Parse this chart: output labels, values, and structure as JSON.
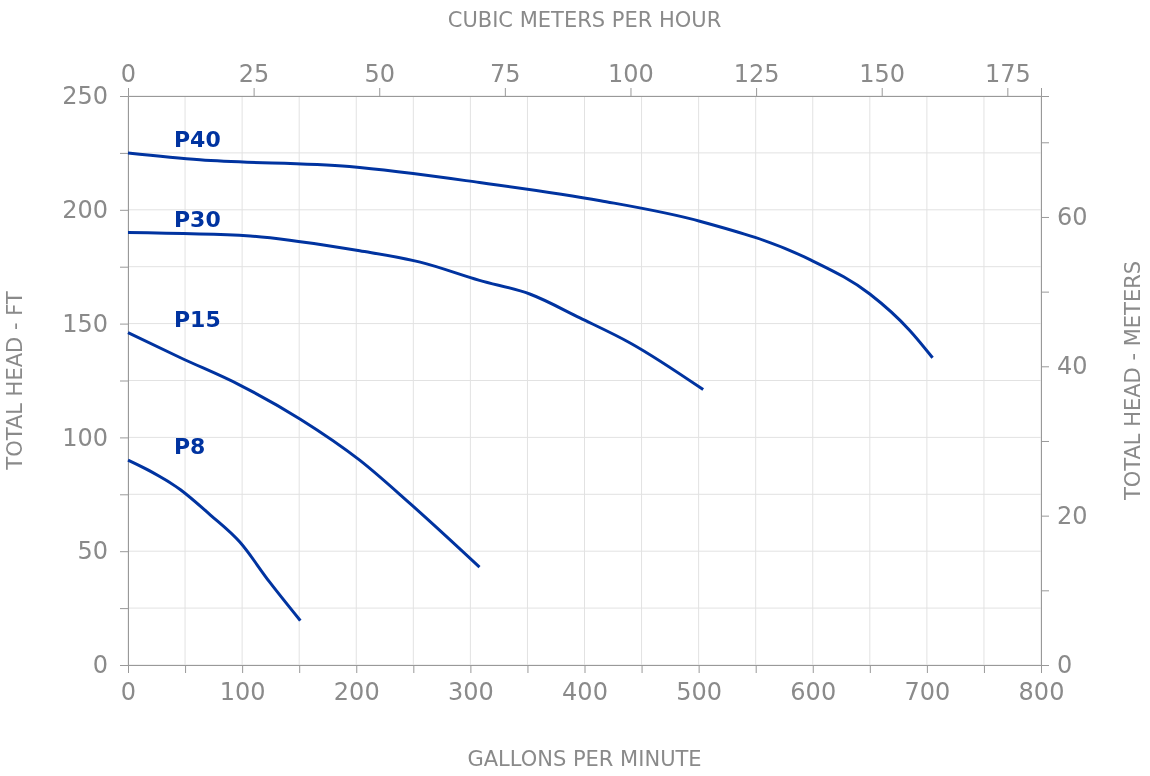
{
  "chart_data": {
    "type": "line",
    "xlabel": "GALLONS PER MINUTE",
    "ylabel": "TOTAL HEAD - FT",
    "y2label": "TOTAL HEAD - METERS",
    "x2label": "CUBIC METERS PER HOUR",
    "xlim": [
      0,
      800
    ],
    "xticks": [
      0,
      {
        "value": 50,
        "label": null
      },
      100,
      {
        "value": 150,
        "label": null
      },
      200,
      {
        "value": 250,
        "label": null
      },
      300,
      {
        "value": 350,
        "label": null
      },
      400,
      {
        "value": 450,
        "label": null
      },
      500,
      {
        "value": 550,
        "label": null
      },
      600,
      {
        "value": 650,
        "label": null
      },
      700,
      {
        "value": 750,
        "label": null
      },
      800
    ],
    "ylim": [
      0,
      250
    ],
    "yticks": [
      0,
      {
        "value": 25,
        "label": null
      },
      50,
      {
        "value": 75,
        "label": null
      },
      100,
      {
        "value": 125,
        "label": null
      },
      150,
      {
        "value": 175,
        "label": null
      },
      200,
      {
        "value": 225,
        "label": null
      },
      250
    ],
    "x2lim": [
      0,
      181.7
    ],
    "x2ticks": [
      0,
      25,
      50,
      75,
      100,
      125,
      150,
      175
    ],
    "y2lim": [
      0,
      76.2
    ],
    "y2ticks": [
      0,
      {
        "value": 10,
        "label": null
      },
      20,
      {
        "value": 30,
        "label": null
      },
      40,
      {
        "value": 50,
        "label": null
      },
      60,
      {
        "value": 70,
        "label": null
      }
    ],
    "grid": true,
    "marker": "none",
    "line_style": "solid",
    "series": [
      {
        "name": "P40",
        "color": "#0033a0",
        "x": [
          0,
          63,
          194,
          308,
          414,
          501,
          598,
          650,
          685,
          705
        ],
        "values": [
          225,
          222,
          219,
          212,
          204,
          195,
          178,
          163,
          147,
          135
        ]
      },
      {
        "name": "P30",
        "color": "#0033a0",
        "x": [
          0,
          107,
          151,
          203,
          256,
          308,
          352,
          396,
          440,
          504
        ],
        "values": [
          190,
          188.5,
          186,
          182,
          177,
          169,
          163,
          152.5,
          141.5,
          121
        ]
      },
      {
        "name": "P15",
        "color": "#0033a0",
        "x": [
          0,
          46,
          98,
          151,
          203,
          247,
          308
        ],
        "values": [
          146,
          135,
          123,
          108,
          90,
          71,
          43
        ]
      },
      {
        "name": "P8",
        "color": "#0033a0",
        "x": [
          0,
          46,
          72,
          98,
          124,
          151
        ],
        "values": [
          90,
          77,
          66,
          54,
          36.5,
          19.5
        ]
      }
    ]
  }
}
